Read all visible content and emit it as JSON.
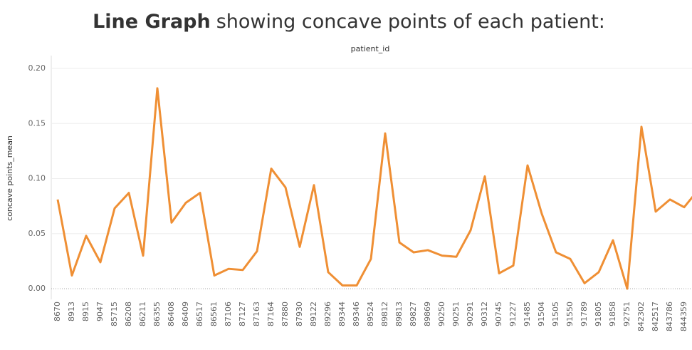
{
  "chart_data": {
    "type": "line",
    "title_bold": "Line Graph",
    "title": "showing concave points of each patient:",
    "x_label": "patient_id",
    "y_label": "concave points_mean",
    "categories": [
      "8670",
      "8913",
      "8915",
      "9047",
      "85715",
      "86208",
      "86211",
      "86355",
      "86408",
      "86409",
      "86517",
      "86561",
      "87106",
      "87127",
      "87163",
      "87164",
      "87880",
      "87930",
      "89122",
      "89296",
      "89344",
      "89346",
      "89524",
      "89812",
      "89813",
      "89827",
      "89869",
      "90250",
      "90251",
      "90291",
      "90312",
      "90745",
      "91227",
      "91485",
      "91504",
      "91505",
      "91550",
      "91789",
      "91805",
      "91858",
      "92751",
      "842302",
      "842517",
      "843786",
      "844359",
      null
    ],
    "series": [
      {
        "name": "concave points_mean",
        "color": "#ef8f34",
        "values": [
          0.081,
          0.012,
          0.048,
          0.024,
          0.073,
          0.087,
          0.03,
          0.182,
          0.06,
          0.078,
          0.087,
          0.012,
          0.018,
          0.017,
          0.034,
          0.109,
          0.092,
          0.038,
          0.094,
          0.015,
          0.003,
          0.003,
          0.027,
          0.141,
          0.042,
          0.033,
          0.035,
          0.03,
          0.029,
          0.053,
          0.102,
          0.014,
          0.021,
          0.112,
          0.068,
          0.033,
          0.027,
          0.005,
          0.015,
          0.044,
          0.0,
          0.147,
          0.07,
          0.081,
          0.074,
          0.09
        ]
      }
    ],
    "ylim": [
      0,
      0.2
    ],
    "yticks": [
      {
        "value": 0,
        "label": "0.00"
      },
      0.05,
      {
        "value": 0.1,
        "label": "0.10"
      },
      0.15,
      {
        "value": 0.2,
        "label": "0.20"
      }
    ],
    "grid": true
  }
}
